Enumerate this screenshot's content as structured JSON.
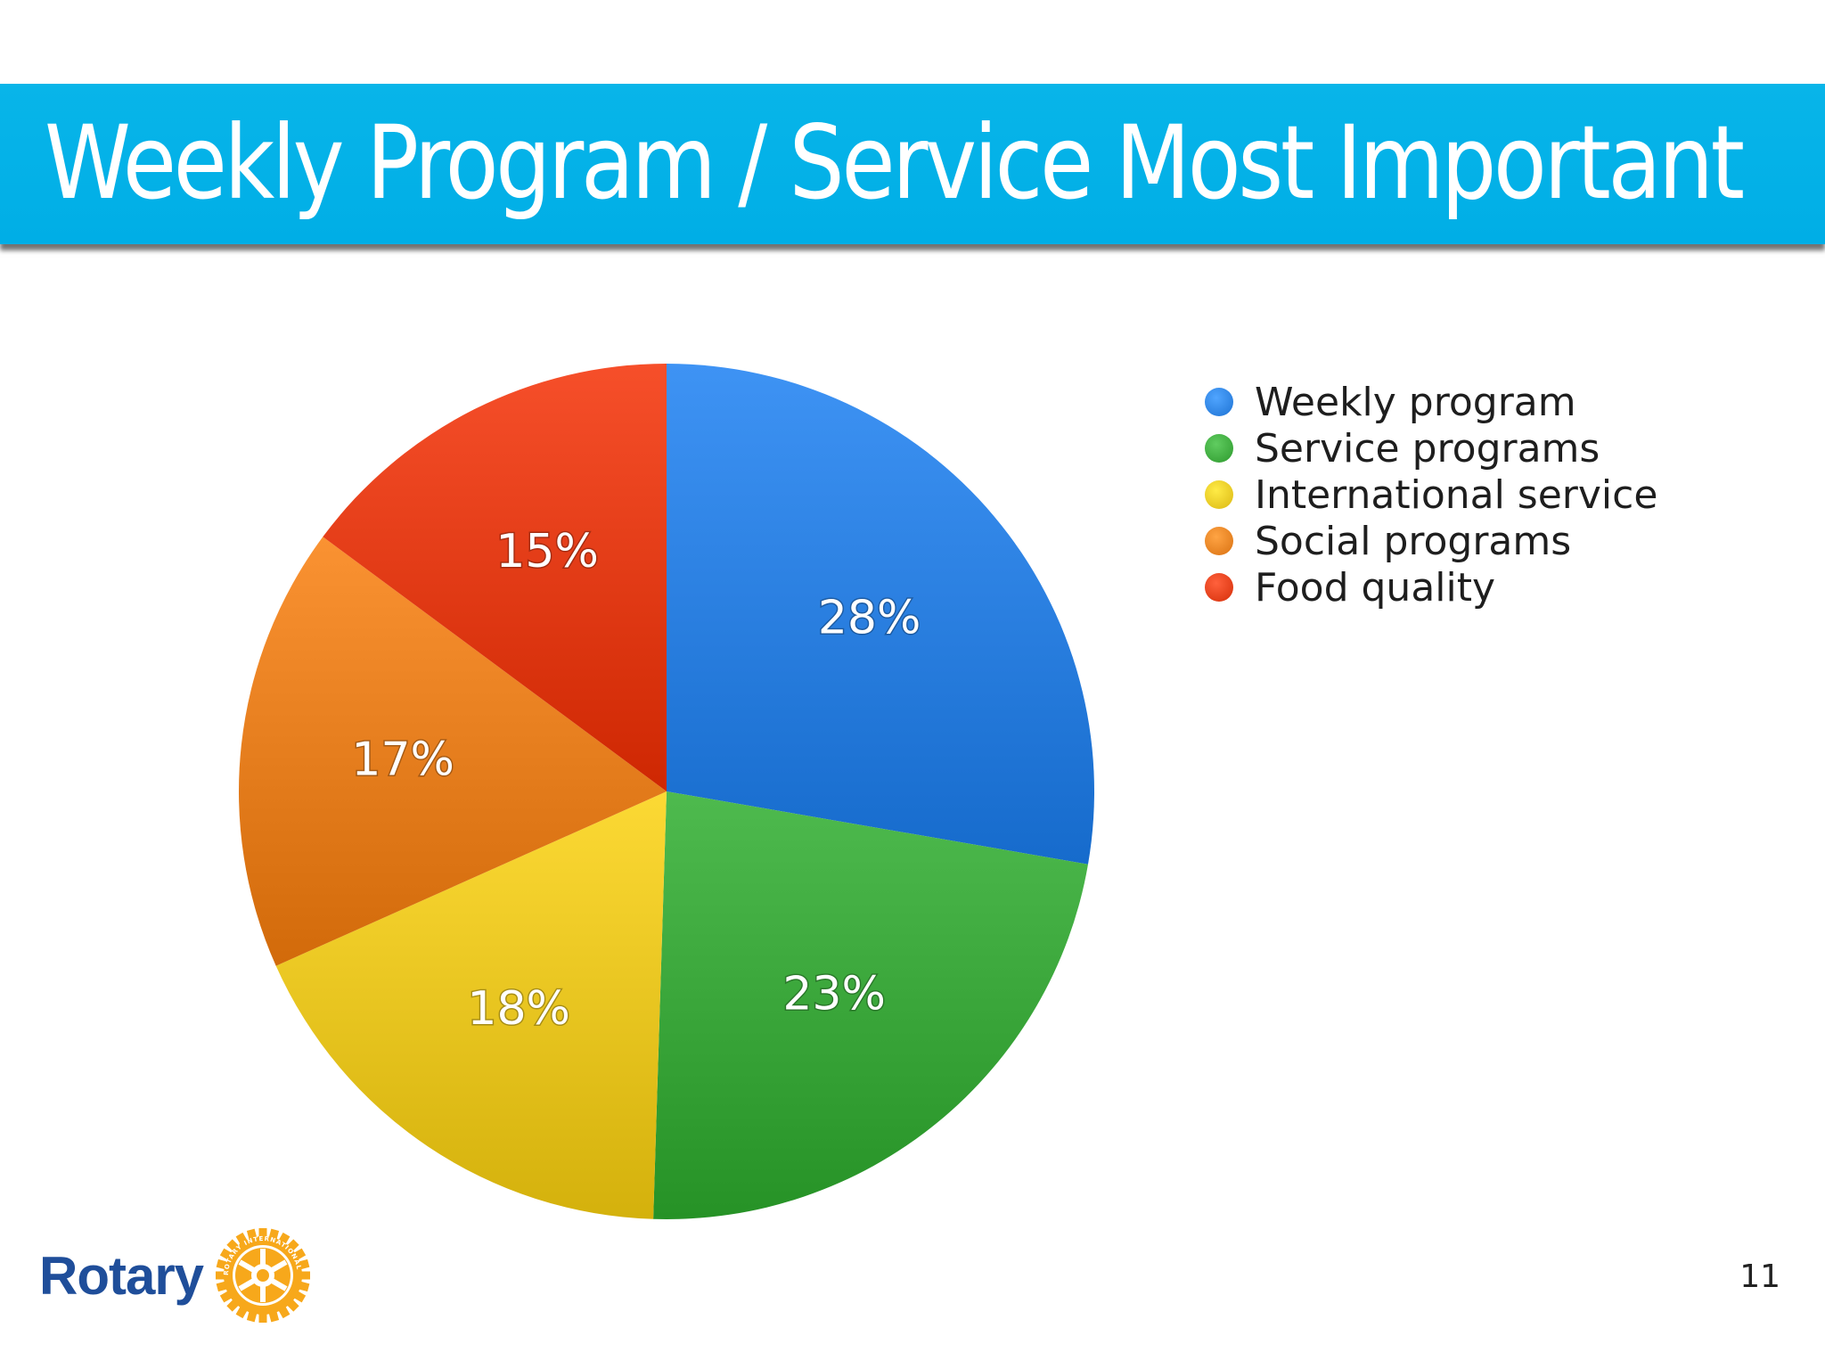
{
  "slide": {
    "title": "Weekly Program / Service Most Important",
    "page_number": "11"
  },
  "logo": {
    "text": "Rotary",
    "emblem_text": "ROTARY INTERNATIONAL",
    "icon": "rotary-wheel-icon"
  },
  "colors": {
    "title_bar": "#00aee6",
    "logo_text": "#1f4e9a",
    "logo_gold": "#f7a81b"
  },
  "chart_data": {
    "type": "pie",
    "title": "Weekly Program / Service Most Important",
    "categories": [
      "Weekly program",
      "Service programs",
      "International service",
      "Social programs",
      "Food quality"
    ],
    "values": [
      28,
      23,
      18,
      17,
      15
    ],
    "labels": [
      "28%",
      "23%",
      "18%",
      "17%",
      "15%"
    ],
    "colors": [
      "#2a7fe0",
      "#3aa63a",
      "#e8c520",
      "#e67e1e",
      "#e23b16"
    ],
    "legend_position": "right"
  }
}
